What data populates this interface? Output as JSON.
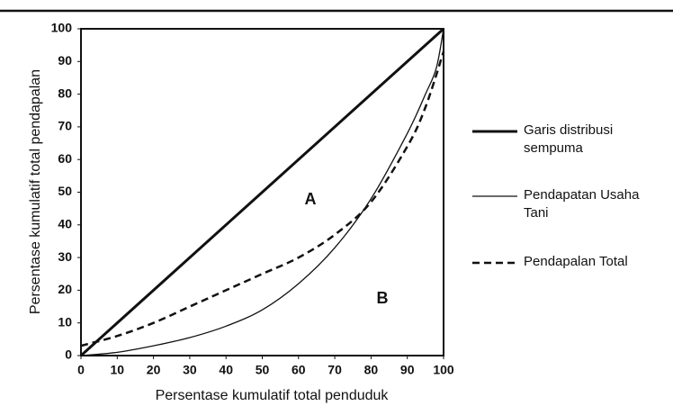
{
  "chart_data": {
    "type": "line",
    "xlabel": "Persentase kumulatif total penduduk",
    "ylabel": "Persentase kumulatif total pendapalan",
    "annotations": [
      "A",
      "B"
    ],
    "xlim": [
      0,
      100
    ],
    "ylim": [
      0,
      100
    ],
    "xticks": [
      0,
      10,
      20,
      30,
      40,
      50,
      60,
      70,
      80,
      90,
      100
    ],
    "yticks": [
      0,
      10,
      20,
      30,
      40,
      50,
      60,
      70,
      80,
      90,
      100
    ],
    "series": [
      {
        "name": "Garis distribusi sempuma",
        "color": "#111111",
        "linewidth": 3,
        "dashed": false,
        "x": [
          0,
          100
        ],
        "values": [
          0,
          100
        ]
      },
      {
        "name": "Pendapatan Usaha Tani",
        "color": "#111111",
        "linewidth": 1.3,
        "dashed": false,
        "x": [
          0,
          10,
          20,
          30,
          40,
          50,
          60,
          70,
          80,
          90,
          95,
          98,
          100
        ],
        "values": [
          0,
          1,
          3,
          5.5,
          9,
          14,
          22,
          33,
          48,
          68,
          80,
          88,
          100
        ]
      },
      {
        "name": "Pendapalan Total",
        "color": "#111111",
        "linewidth": 2.5,
        "dashed": true,
        "x": [
          0,
          10,
          20,
          30,
          40,
          50,
          60,
          70,
          80,
          90,
          95,
          100
        ],
        "values": [
          3,
          6,
          10,
          15,
          20,
          25,
          30,
          37,
          47,
          64,
          76,
          93
        ]
      }
    ]
  }
}
